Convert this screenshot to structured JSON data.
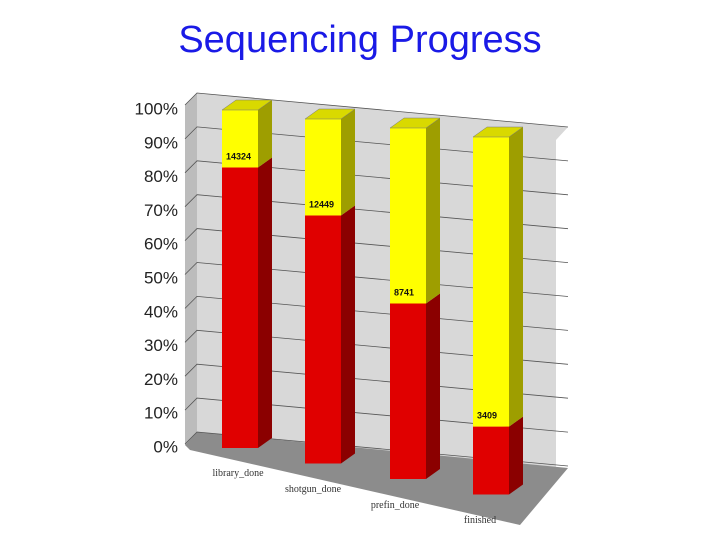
{
  "chart_data": {
    "type": "bar3d_stacked",
    "title": "Sequencing Progress",
    "categories": [
      "library_done",
      "shotgun_done",
      "prefin_done",
      "finished"
    ],
    "series": [
      {
        "color": "#e00000",
        "values": [
          83,
          72,
          50,
          19
        ]
      },
      {
        "color": "#ffff00",
        "values": [
          17,
          28,
          50,
          81
        ]
      }
    ],
    "annotations": [
      14324,
      12449,
      8741,
      3409
    ],
    "ylim": [
      0,
      100
    ],
    "yticks": [
      {
        "value": 0,
        "label": "0%"
      },
      {
        "value": 10,
        "label": "10%"
      },
      {
        "value": 20,
        "label": "20%"
      },
      {
        "value": 30,
        "label": "30%"
      },
      {
        "value": 40,
        "label": "40%"
      },
      {
        "value": 50,
        "label": "50%"
      },
      {
        "value": 60,
        "label": "60%"
      },
      {
        "value": 70,
        "label": "70%"
      },
      {
        "value": 80,
        "label": "80%"
      },
      {
        "value": 90,
        "label": "90%"
      },
      {
        "value": 100,
        "label": "100%"
      }
    ],
    "grid": true
  }
}
